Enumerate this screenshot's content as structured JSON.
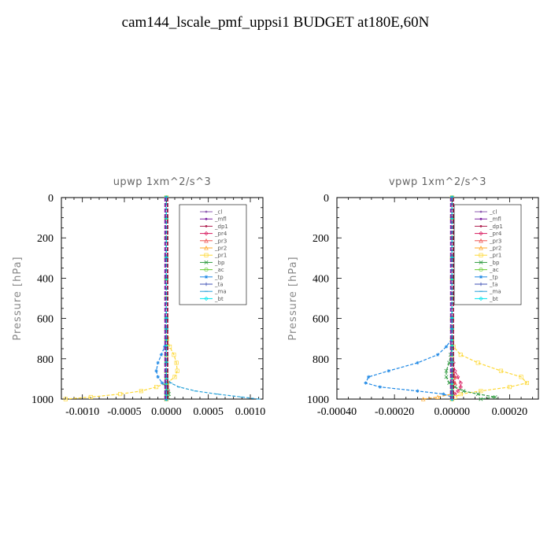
{
  "title": "cam144_lscale_pmf_uppsi1  BUDGET at180E,60N",
  "series_styles": [
    {
      "name": "_cl",
      "color": "#8e5bb0",
      "marker": "dot"
    },
    {
      "name": "_mfl",
      "color": "#7b1fa2",
      "marker": "dot"
    },
    {
      "name": "_dp1",
      "color": "#b0204f",
      "marker": "dot"
    },
    {
      "name": "_pr4",
      "color": "#d81b60",
      "marker": "diamond"
    },
    {
      "name": "_pr3",
      "color": "#ef5350",
      "marker": "triangle"
    },
    {
      "name": "_pr2",
      "color": "#ffa726",
      "marker": "triangle"
    },
    {
      "name": "_pr1",
      "color": "#fdd835",
      "marker": "square"
    },
    {
      "name": "_bp",
      "color": "#2e9a3e",
      "marker": "x"
    },
    {
      "name": "_ac",
      "color": "#66cc33",
      "marker": "circle"
    },
    {
      "name": "_tp",
      "color": "#1e88e5",
      "marker": "star"
    },
    {
      "name": "_ta",
      "color": "#3f51b5",
      "marker": "plus"
    },
    {
      "name": "_ma",
      "color": "#26a0d8",
      "marker": "dash"
    },
    {
      "name": "_bt",
      "color": "#00e5ee",
      "marker": "diamond"
    }
  ],
  "chart_data": [
    {
      "type": "line",
      "title": "upwp   1xm^2/s^3",
      "ylabel": "Pressure [hPa]",
      "xlim": [
        -0.00125,
        0.00115
      ],
      "ylim": [
        1000,
        0
      ],
      "xticks": [
        -0.001,
        -0.0005,
        0.0,
        0.0005,
        0.001
      ],
      "xtick_labels": [
        "-0.0010",
        "-0.0005",
        "0.0000",
        "0.0005",
        "0.0010"
      ],
      "yticks": [
        0,
        200,
        400,
        600,
        800,
        1000
      ],
      "ytick_labels": [
        "0",
        "200",
        "400",
        "600",
        "800",
        "1000"
      ],
      "legend": "top-right",
      "y": [
        0,
        100,
        200,
        300,
        400,
        500,
        600,
        650,
        700,
        740,
        780,
        820,
        860,
        890,
        920,
        940,
        960,
        975,
        990,
        1000
      ],
      "series": [
        {
          "name": "_cl",
          "values": [
            0,
            0,
            0,
            0,
            0,
            0,
            0,
            0,
            0,
            0,
            0,
            0,
            0,
            0,
            0,
            0,
            0,
            0,
            0,
            0
          ]
        },
        {
          "name": "_mfl",
          "values": [
            0,
            0,
            0,
            0,
            0,
            0,
            0,
            0,
            0,
            0,
            0,
            0,
            0,
            0,
            0,
            0,
            0,
            0,
            0,
            0
          ]
        },
        {
          "name": "_dp1",
          "values": [
            0,
            0,
            0,
            0,
            0,
            0,
            0,
            0,
            0,
            0,
            0,
            0,
            0,
            0,
            0,
            0,
            0,
            0,
            0,
            0
          ]
        },
        {
          "name": "_pr4",
          "values": [
            0,
            0,
            0,
            0,
            0,
            0,
            0,
            0,
            0,
            0,
            0,
            0,
            0,
            0,
            1e-05,
            1e-05,
            2e-05,
            0,
            0,
            0
          ]
        },
        {
          "name": "_pr3",
          "values": [
            0,
            0,
            0,
            0,
            0,
            0,
            0,
            0,
            0,
            0,
            0,
            0,
            0,
            0,
            0,
            0,
            0,
            0,
            0,
            0
          ]
        },
        {
          "name": "_pr2",
          "values": [
            0,
            0,
            0,
            0,
            0,
            0,
            0,
            0,
            0,
            0,
            0,
            0,
            0,
            0,
            0,
            0,
            0,
            0,
            0,
            0
          ]
        },
        {
          "name": "_pr1",
          "values": [
            0,
            0,
            0,
            0,
            0,
            0,
            0,
            0,
            1e-05,
            4e-05,
            9e-05,
            0.00012,
            0.00013,
            0.0001,
            1e-05,
            -0.00012,
            -0.0003,
            -0.00055,
            -0.0009,
            -0.0012
          ]
        },
        {
          "name": "_bp",
          "values": [
            0,
            0,
            0,
            0,
            0,
            0,
            0,
            0,
            0,
            0,
            0,
            0,
            0,
            0,
            0,
            1e-05,
            2e-05,
            3e-05,
            2e-05,
            0
          ]
        },
        {
          "name": "_ac",
          "values": [
            0,
            0,
            0,
            0,
            0,
            0,
            0,
            0,
            0,
            0,
            0,
            0,
            0,
            0,
            0,
            0,
            0,
            0,
            0,
            0
          ]
        },
        {
          "name": "_tp",
          "values": [
            0,
            0,
            0,
            0,
            0,
            0,
            0,
            0,
            0,
            -2e-05,
            -6e-05,
            -0.0001,
            -0.00012,
            -0.0001,
            -5e-05,
            0,
            0,
            0,
            0,
            0
          ]
        },
        {
          "name": "_ta",
          "values": [
            0,
            0,
            0,
            0,
            0,
            0,
            0,
            0,
            0,
            0,
            0,
            0,
            0,
            0,
            0,
            0,
            0,
            0,
            0,
            0
          ]
        },
        {
          "name": "_ma",
          "values": [
            0,
            0,
            0,
            0,
            0,
            0,
            0,
            0,
            0,
            0,
            0,
            0,
            0,
            0,
            5e-05,
            0.00015,
            0.00035,
            0.0006,
            0.0009,
            0.0011
          ]
        },
        {
          "name": "_bt",
          "values": [
            0,
            0,
            0,
            0,
            0,
            0,
            0,
            0,
            0,
            0,
            0,
            0,
            0,
            0,
            0,
            0,
            0,
            0,
            0,
            0
          ]
        }
      ]
    },
    {
      "type": "line",
      "title": "vpwp   1xm^2/s^3",
      "ylabel": "Pressure [hPa]",
      "xlim": [
        -0.0004,
        0.0003
      ],
      "ylim": [
        1000,
        0
      ],
      "xticks": [
        -0.0004,
        -0.0002,
        0.0,
        0.0002
      ],
      "xtick_labels": [
        "-0.00040",
        "-0.00020",
        "0.00000",
        "0.00020"
      ],
      "yticks": [
        0,
        200,
        400,
        600,
        800,
        1000
      ],
      "ytick_labels": [
        "0",
        "200",
        "400",
        "600",
        "800",
        "1000"
      ],
      "legend": "top-right",
      "y": [
        0,
        100,
        200,
        300,
        400,
        500,
        600,
        650,
        700,
        740,
        780,
        820,
        860,
        890,
        920,
        940,
        960,
        975,
        990,
        1000
      ],
      "series": [
        {
          "name": "_cl",
          "values": [
            0,
            0,
            0,
            0,
            0,
            0,
            0,
            0,
            0,
            0,
            0,
            0,
            0,
            0,
            0,
            0,
            0,
            0,
            0,
            0
          ]
        },
        {
          "name": "_mfl",
          "values": [
            0,
            0,
            0,
            0,
            0,
            0,
            0,
            0,
            0,
            0,
            0,
            0,
            0,
            0,
            0,
            0,
            0,
            0,
            0,
            0
          ]
        },
        {
          "name": "_dp1",
          "values": [
            0,
            0,
            0,
            0,
            0,
            0,
            0,
            0,
            0,
            0,
            0,
            0,
            5e-06,
            1e-05,
            1e-05,
            5e-06,
            0,
            0,
            0,
            0
          ]
        },
        {
          "name": "_pr4",
          "values": [
            0,
            0,
            0,
            0,
            0,
            0,
            0,
            0,
            0,
            0,
            0,
            5e-06,
            1e-05,
            2e-05,
            3e-05,
            3e-05,
            2e-05,
            1e-05,
            0,
            0
          ]
        },
        {
          "name": "_pr3",
          "values": [
            0,
            0,
            0,
            0,
            0,
            0,
            0,
            0,
            0,
            0,
            0,
            0,
            0,
            1e-05,
            1e-05,
            0,
            0,
            0,
            0,
            0
          ]
        },
        {
          "name": "_pr2",
          "values": [
            0,
            0,
            0,
            0,
            0,
            0,
            0,
            0,
            0,
            0,
            0,
            0,
            0,
            0,
            0,
            0,
            0,
            0,
            -5e-05,
            -0.0001
          ]
        },
        {
          "name": "_pr1",
          "values": [
            0,
            0,
            0,
            0,
            0,
            0,
            0,
            0,
            0,
            5e-06,
            3e-05,
            9e-05,
            0.00017,
            0.00024,
            0.00026,
            0.0002,
            0.0001,
            3e-05,
            1e-05,
            0
          ]
        },
        {
          "name": "_bp",
          "values": [
            0,
            0,
            0,
            0,
            0,
            0,
            0,
            0,
            0,
            0,
            -5e-06,
            -1e-05,
            -2e-05,
            -2e-05,
            -1e-05,
            1e-05,
            4e-05,
            9e-05,
            0.00015,
            0.0001
          ]
        },
        {
          "name": "_ac",
          "values": [
            0,
            0,
            0,
            0,
            0,
            0,
            0,
            0,
            0,
            0,
            0,
            0,
            0,
            0,
            0,
            0,
            0,
            0,
            0,
            0
          ]
        },
        {
          "name": "_tp",
          "values": [
            0,
            0,
            0,
            0,
            0,
            0,
            0,
            0,
            0,
            -2e-05,
            -5e-05,
            -0.00012,
            -0.00022,
            -0.00029,
            -0.0003,
            -0.00025,
            -0.00012,
            -3e-05,
            0,
            0
          ]
        },
        {
          "name": "_ta",
          "values": [
            0,
            0,
            0,
            0,
            0,
            0,
            0,
            0,
            0,
            0,
            0,
            0,
            0,
            0,
            0,
            0,
            0,
            0,
            0,
            0
          ]
        },
        {
          "name": "_ma",
          "values": [
            0,
            0,
            0,
            0,
            0,
            0,
            0,
            0,
            0,
            0,
            0,
            0,
            0,
            0,
            0,
            0,
            0,
            0,
            0,
            0
          ]
        },
        {
          "name": "_bt",
          "values": [
            0,
            0,
            0,
            0,
            0,
            0,
            0,
            0,
            0,
            0,
            0,
            0,
            0,
            0,
            0,
            0,
            0,
            0,
            0,
            0
          ]
        }
      ]
    }
  ]
}
